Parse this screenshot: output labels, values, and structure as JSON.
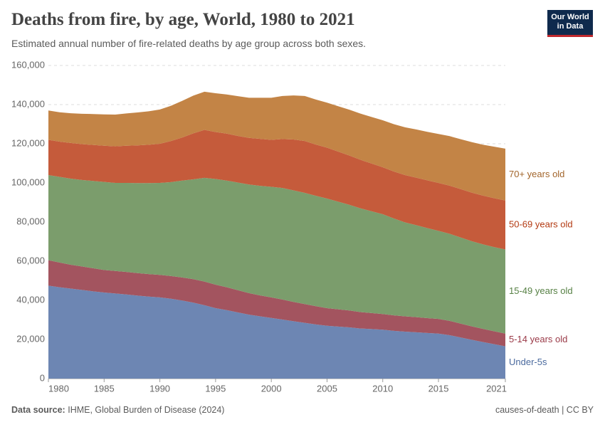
{
  "chart_data": {
    "type": "stacked_area",
    "title": "Deaths from fire, by age, World, 1980 to 2021",
    "subtitle": "Estimated annual number of fire-related deaths by age group across both sexes.",
    "logo": "Our World in Data",
    "source_label": "Data source:",
    "source": "IHME, Global Burden of Disease (2024)",
    "footer_right": "causes-of-death | CC BY",
    "x": [
      1980,
      1981,
      1982,
      1983,
      1984,
      1985,
      1986,
      1987,
      1988,
      1989,
      1990,
      1991,
      1992,
      1993,
      1994,
      1995,
      1996,
      1997,
      1998,
      1999,
      2000,
      2001,
      2002,
      2003,
      2004,
      2005,
      2006,
      2007,
      2008,
      2009,
      2010,
      2011,
      2012,
      2013,
      2014,
      2015,
      2016,
      2017,
      2018,
      2019,
      2020,
      2021
    ],
    "xlim": [
      1980,
      2021
    ],
    "xticks": [
      1980,
      1985,
      1990,
      1995,
      2000,
      2005,
      2010,
      2015,
      2021
    ],
    "ylim": [
      0,
      160000
    ],
    "yticks": [
      0,
      {
        "value": 20000,
        "label": "20,000"
      },
      {
        "value": 40000,
        "label": "40,000"
      },
      {
        "value": 60000,
        "label": "60,000"
      },
      {
        "value": 80000,
        "label": "80,000"
      },
      {
        "value": 100000,
        "label": "100,000"
      },
      {
        "value": 120000,
        "label": "120,000"
      },
      {
        "value": 140000,
        "label": "140,000"
      },
      {
        "value": 160000,
        "label": "160,000"
      }
    ],
    "grid": true,
    "series": [
      {
        "name": "Under-5s",
        "color": "#6d86b3",
        "label_color": "#4a6a9e",
        "values": [
          47500,
          46700,
          46000,
          45300,
          44600,
          44000,
          43500,
          43000,
          42400,
          41900,
          41500,
          40800,
          39900,
          38800,
          37500,
          36000,
          35000,
          33800,
          32700,
          31800,
          31000,
          30200,
          29300,
          28500,
          27700,
          27000,
          26600,
          26200,
          25600,
          25300,
          25000,
          24400,
          24000,
          23700,
          23300,
          23000,
          22200,
          21000,
          19800,
          18700,
          17600,
          16500
        ]
      },
      {
        "name": "5-14 years old",
        "color": "#a3545f",
        "label_color": "#9a3a48",
        "values": [
          13000,
          12600,
          12200,
          12000,
          11800,
          11500,
          11500,
          11500,
          11500,
          11500,
          11500,
          11600,
          11800,
          12000,
          12100,
          12000,
          11700,
          11400,
          11000,
          10700,
          10500,
          10200,
          9900,
          9600,
          9300,
          9000,
          8800,
          8600,
          8400,
          8200,
          8000,
          7900,
          7800,
          7700,
          7600,
          7500,
          7300,
          7100,
          6900,
          6700,
          6600,
          6500
        ]
      },
      {
        "name": "15-49 years old",
        "color": "#7b9d6c",
        "label_color": "#578145",
        "values": [
          43500,
          43800,
          44000,
          44200,
          44600,
          45000,
          45000,
          45500,
          46000,
          46500,
          47000,
          48000,
          49500,
          51000,
          53000,
          54000,
          54500,
          55000,
          55500,
          56000,
          56500,
          57000,
          57000,
          56800,
          56400,
          56000,
          55000,
          54000,
          53000,
          52000,
          51000,
          49500,
          48000,
          47000,
          46000,
          45000,
          44500,
          44000,
          43500,
          43200,
          43000,
          43000
        ]
      },
      {
        "name": "50-69 years old",
        "color": "#c55b3b",
        "label_color": "#b33a12",
        "values": [
          18000,
          18000,
          18200,
          18300,
          18400,
          18500,
          18700,
          19000,
          19300,
          19600,
          20000,
          21000,
          22000,
          23500,
          24500,
          24000,
          24000,
          23800,
          23800,
          24000,
          24000,
          25000,
          26000,
          26500,
          26200,
          26000,
          25600,
          25200,
          24800,
          24400,
          24000,
          24000,
          24200,
          24300,
          24400,
          24500,
          24600,
          24700,
          24800,
          24900,
          25000,
          25000
        ]
      },
      {
        "name": "70+ years old",
        "color": "#c38446",
        "label_color": "#a2652b",
        "values": [
          15000,
          15000,
          15200,
          15500,
          15800,
          16000,
          16200,
          16500,
          16800,
          17100,
          17500,
          18000,
          18700,
          19300,
          19500,
          19800,
          20000,
          20300,
          20500,
          21000,
          21500,
          22000,
          22500,
          23000,
          23000,
          23000,
          23200,
          23400,
          23600,
          23800,
          24000,
          24200,
          24400,
          24600,
          24800,
          25000,
          25300,
          25500,
          25800,
          26000,
          26300,
          26500
        ]
      }
    ]
  }
}
